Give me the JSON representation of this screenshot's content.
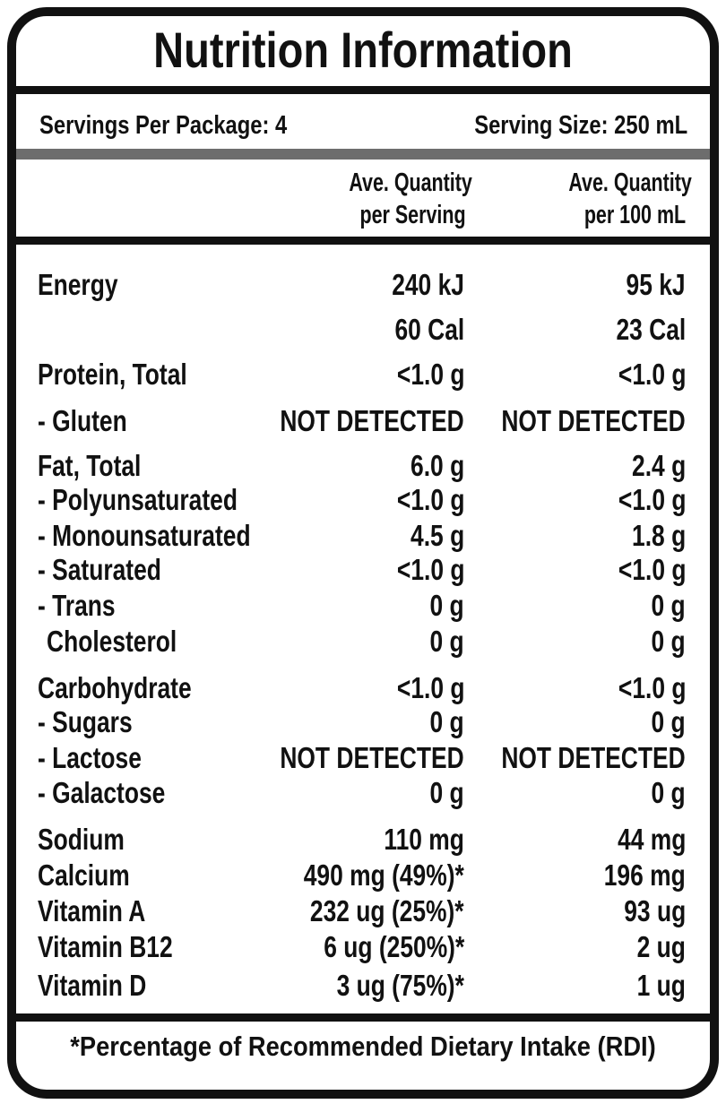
{
  "title": "Nutrition Information",
  "servings": {
    "per_package": "Servings Per Package: 4",
    "size": "Serving Size: 250 mL"
  },
  "header": {
    "per_serving": [
      "Ave. Quantity",
      "per Serving"
    ],
    "per_100ml": [
      "Ave. Quantity",
      "per 100 mL"
    ]
  },
  "rows": [
    [
      "Energy",
      "240 kJ",
      "95 kJ"
    ],
    [
      null,
      "60 Cal",
      "23 Cal"
    ],
    [
      "Protein, Total",
      "<1.0 g",
      "<1.0 g"
    ],
    [
      "- Gluten",
      "NOT DETECTED",
      "NOT DETECTED"
    ],
    [
      "Fat, Total",
      "6.0 g",
      "2.4 g"
    ],
    [
      "- Polyunsaturated",
      "<1.0 g",
      "<1.0 g"
    ],
    [
      "- Monounsaturated",
      "4.5 g",
      "1.8 g"
    ],
    [
      "- Saturated",
      "<1.0 g",
      "<1.0 g"
    ],
    [
      "- Trans",
      "0 g",
      "0 g"
    ],
    [
      "Cholesterol",
      "0 g",
      "0 g"
    ],
    [
      "Carbohydrate",
      "<1.0 g",
      "<1.0 g"
    ],
    [
      "- Sugars",
      "0 g",
      "0 g"
    ],
    [
      "- Lactose",
      "NOT DETECTED",
      "NOT DETECTED"
    ],
    [
      "- Galactose",
      "0 g",
      "0 g"
    ],
    [
      "Sodium",
      "110 mg",
      "44 mg"
    ],
    [
      "Calcium",
      "490 mg (49%)*",
      "196 mg"
    ],
    [
      "Vitamin A",
      "232 ug (25%)*",
      "93 ug"
    ],
    [
      "Vitamin B12",
      "6 ug (250%)*",
      "2 ug"
    ],
    [
      "Vitamin D",
      "3 ug (75%)*",
      "1 ug"
    ]
  ],
  "footnote": "*Percentage of Recommended Dietary Intake (RDI)"
}
